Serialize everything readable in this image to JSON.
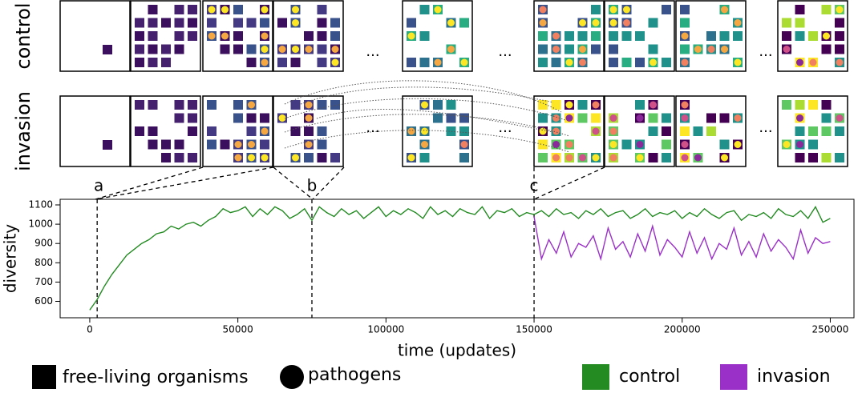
{
  "rows": [
    "control",
    "invasion"
  ],
  "ellipsis": "...",
  "symbol_legend": [
    "free-living organisms",
    "pathogens"
  ],
  "chart_data": {
    "type": "line",
    "xlabel": "time (updates)",
    "ylabel": "diversity",
    "xlim": [
      -10000,
      258000
    ],
    "ylim": [
      515,
      1129
    ],
    "xticks": [
      0,
      50000,
      100000,
      150000,
      200000,
      250000
    ],
    "yticks": [
      600,
      700,
      800,
      900,
      1000,
      1100
    ],
    "markers": [
      {
        "label": "a",
        "x": 2500
      },
      {
        "label": "b",
        "x": 75000
      },
      {
        "label": "c",
        "x": 150000
      }
    ],
    "x": [
      0,
      2500,
      5000,
      7500,
      10000,
      12500,
      15000,
      17500,
      20000,
      22500,
      25000,
      27500,
      30000,
      32500,
      35000,
      37500,
      40000,
      42500,
      45000,
      47500,
      50000,
      52500,
      55000,
      57500,
      60000,
      62500,
      65000,
      67500,
      70000,
      72500,
      75000,
      77500,
      80000,
      82500,
      85000,
      87500,
      90000,
      92500,
      95000,
      97500,
      100000,
      102500,
      105000,
      107500,
      110000,
      112500,
      115000,
      117500,
      120000,
      122500,
      125000,
      127500,
      130000,
      132500,
      135000,
      137500,
      140000,
      142500,
      145000,
      147500,
      150000,
      152500,
      155000,
      157500,
      160000,
      162500,
      165000,
      167500,
      170000,
      172500,
      175000,
      177500,
      180000,
      182500,
      185000,
      187500,
      190000,
      192500,
      195000,
      197500,
      200000,
      202500,
      205000,
      207500,
      210000,
      212500,
      215000,
      217500,
      220000,
      222500,
      225000,
      227500,
      230000,
      232500,
      235000,
      237500,
      240000,
      242500,
      245000,
      247500,
      250000
    ],
    "series": [
      {
        "name": "control",
        "color": "#238b22",
        "values": [
          555,
          610,
          680,
          740,
          790,
          840,
          870,
          900,
          920,
          950,
          960,
          990,
          975,
          1000,
          1010,
          990,
          1020,
          1040,
          1080,
          1060,
          1070,
          1090,
          1040,
          1080,
          1050,
          1090,
          1070,
          1030,
          1050,
          1080,
          1020,
          1090,
          1060,
          1040,
          1080,
          1050,
          1070,
          1030,
          1060,
          1090,
          1040,
          1070,
          1050,
          1080,
          1060,
          1030,
          1090,
          1050,
          1070,
          1040,
          1080,
          1060,
          1050,
          1090,
          1030,
          1070,
          1060,
          1080,
          1040,
          1060,
          1050,
          1070,
          1040,
          1080,
          1050,
          1060,
          1030,
          1070,
          1050,
          1080,
          1040,
          1060,
          1070,
          1030,
          1050,
          1080,
          1040,
          1060,
          1050,
          1070,
          1030,
          1060,
          1040,
          1080,
          1050,
          1030,
          1060,
          1070,
          1020,
          1050,
          1040,
          1060,
          1030,
          1080,
          1050,
          1040,
          1070,
          1030,
          1090,
          1010,
          1030
        ]
      },
      {
        "name": "invasion",
        "color": "#9b30c8",
        "values": [
          null,
          null,
          null,
          null,
          null,
          null,
          null,
          null,
          null,
          null,
          null,
          null,
          null,
          null,
          null,
          null,
          null,
          null,
          null,
          null,
          null,
          null,
          null,
          null,
          null,
          null,
          null,
          null,
          null,
          null,
          null,
          null,
          null,
          null,
          null,
          null,
          null,
          null,
          null,
          null,
          null,
          null,
          null,
          null,
          null,
          null,
          null,
          null,
          null,
          null,
          null,
          null,
          null,
          null,
          null,
          null,
          null,
          null,
          null,
          null,
          1040,
          820,
          920,
          850,
          960,
          830,
          900,
          880,
          940,
          820,
          980,
          870,
          910,
          830,
          950,
          860,
          990,
          840,
          920,
          880,
          830,
          960,
          850,
          930,
          820,
          900,
          870,
          980,
          840,
          910,
          830,
          950,
          860,
          920,
          880,
          820,
          970,
          850,
          930,
          900,
          910
        ]
      }
    ]
  }
}
